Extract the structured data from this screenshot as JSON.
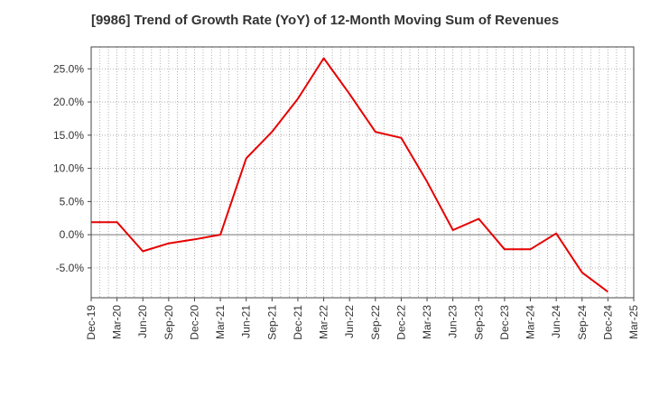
{
  "chart_data": {
    "type": "line",
    "title": "[9986]  Trend of Growth Rate (YoY) of 12-Month Moving Sum of Revenues",
    "xlabel": "",
    "ylabel": "",
    "x_tick_labels": [
      "Dec-19",
      "Mar-20",
      "Jun-20",
      "Sep-20",
      "Dec-20",
      "Mar-21",
      "Jun-21",
      "Sep-21",
      "Dec-21",
      "Mar-22",
      "Jun-22",
      "Sep-22",
      "Dec-22",
      "Mar-23",
      "Jun-23",
      "Sep-23",
      "Dec-23",
      "Mar-24",
      "Jun-24",
      "Sep-24",
      "Dec-24",
      "Mar-25"
    ],
    "y_tick_labels": [
      "-5.0%",
      "0.0%",
      "5.0%",
      "10.0%",
      "15.0%",
      "20.0%",
      "25.0%"
    ],
    "y_ticks": [
      -5,
      0,
      5,
      10,
      15,
      20,
      25
    ],
    "ylim": [
      -9.5,
      28.3
    ],
    "grid": true,
    "series": [
      {
        "color": "#e60000",
        "x": [
          "Dec-19",
          "Mar-20",
          "Jun-20",
          "Sep-20",
          "Dec-20",
          "Mar-21",
          "Jun-21",
          "Sep-21",
          "Dec-21",
          "Mar-22",
          "Jun-22",
          "Sep-22",
          "Dec-22",
          "Mar-23",
          "Jun-23",
          "Sep-23",
          "Dec-23",
          "Mar-24",
          "Jun-24",
          "Sep-24",
          "Dec-24"
        ],
        "values": [
          1.9,
          1.9,
          -2.5,
          -1.3,
          -0.7,
          0.0,
          11.5,
          15.5,
          20.5,
          26.6,
          21.2,
          15.5,
          14.6,
          8.0,
          0.7,
          2.4,
          -2.2,
          -2.2,
          0.2,
          -5.7,
          -8.6
        ]
      }
    ]
  }
}
